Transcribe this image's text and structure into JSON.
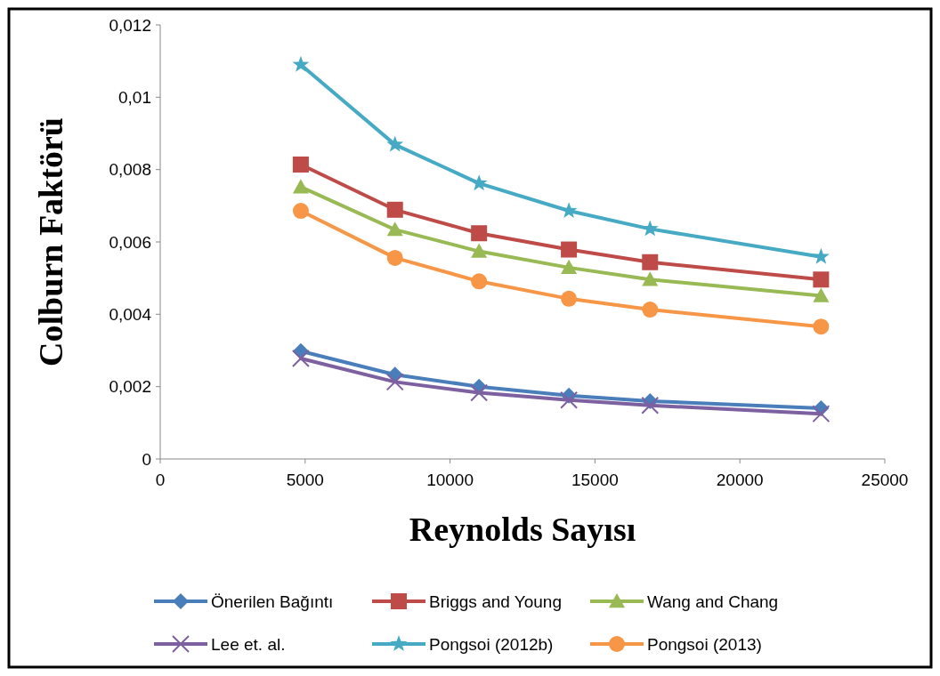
{
  "chart_data": {
    "type": "line",
    "xlabel": "Reynolds Sayısı",
    "ylabel": "Colburn Faktörü",
    "x": [
      4850,
      8100,
      11000,
      14100,
      16900,
      22800
    ],
    "xlim": [
      0,
      25000
    ],
    "xticks": [
      0,
      5000,
      10000,
      15000,
      20000,
      25000
    ],
    "ylim": [
      0,
      0.012
    ],
    "yticks": [
      0,
      {
        "value": 0.002,
        "label": "0,002"
      },
      {
        "value": 0.004,
        "label": "0,004"
      },
      {
        "value": 0.006,
        "label": "0,006"
      },
      {
        "value": 0.008,
        "label": "0,008"
      },
      {
        "value": 0.01,
        "label": "0,01"
      },
      {
        "value": 0.012,
        "label": "0,012"
      }
    ],
    "grid": false,
    "legend": "bottom",
    "line_style": "solid",
    "series": [
      {
        "name": "Önerilen Bağıntı",
        "color": "#4a7ebb",
        "marker": "diamond",
        "values": [
          0.00298,
          0.00233,
          0.002,
          0.00175,
          0.0016,
          0.0014
        ]
      },
      {
        "name": "Briggs and Young",
        "color": "#be4b48",
        "marker": "square",
        "values": [
          0.00814,
          0.00689,
          0.00624,
          0.00579,
          0.00544,
          0.00496
        ]
      },
      {
        "name": "Wang and Chang",
        "color": "#98b954",
        "marker": "triangle",
        "values": [
          0.00752,
          0.00634,
          0.00574,
          0.00529,
          0.00496,
          0.00451
        ]
      },
      {
        "name": "Lee et. al.",
        "color": "#7d60a0",
        "marker": "cross",
        "values": [
          0.00278,
          0.00213,
          0.00183,
          0.00163,
          0.00148,
          0.00125
        ]
      },
      {
        "name": "Pongsoi (2012b)",
        "color": "#46aac5",
        "marker": "star",
        "values": [
          0.0109,
          0.00869,
          0.00762,
          0.00686,
          0.00636,
          0.00559
        ]
      },
      {
        "name": "Pongsoi (2013)",
        "color": "#f79646",
        "marker": "circle",
        "values": [
          0.00686,
          0.00556,
          0.00491,
          0.00443,
          0.00413,
          0.00366
        ]
      }
    ]
  }
}
